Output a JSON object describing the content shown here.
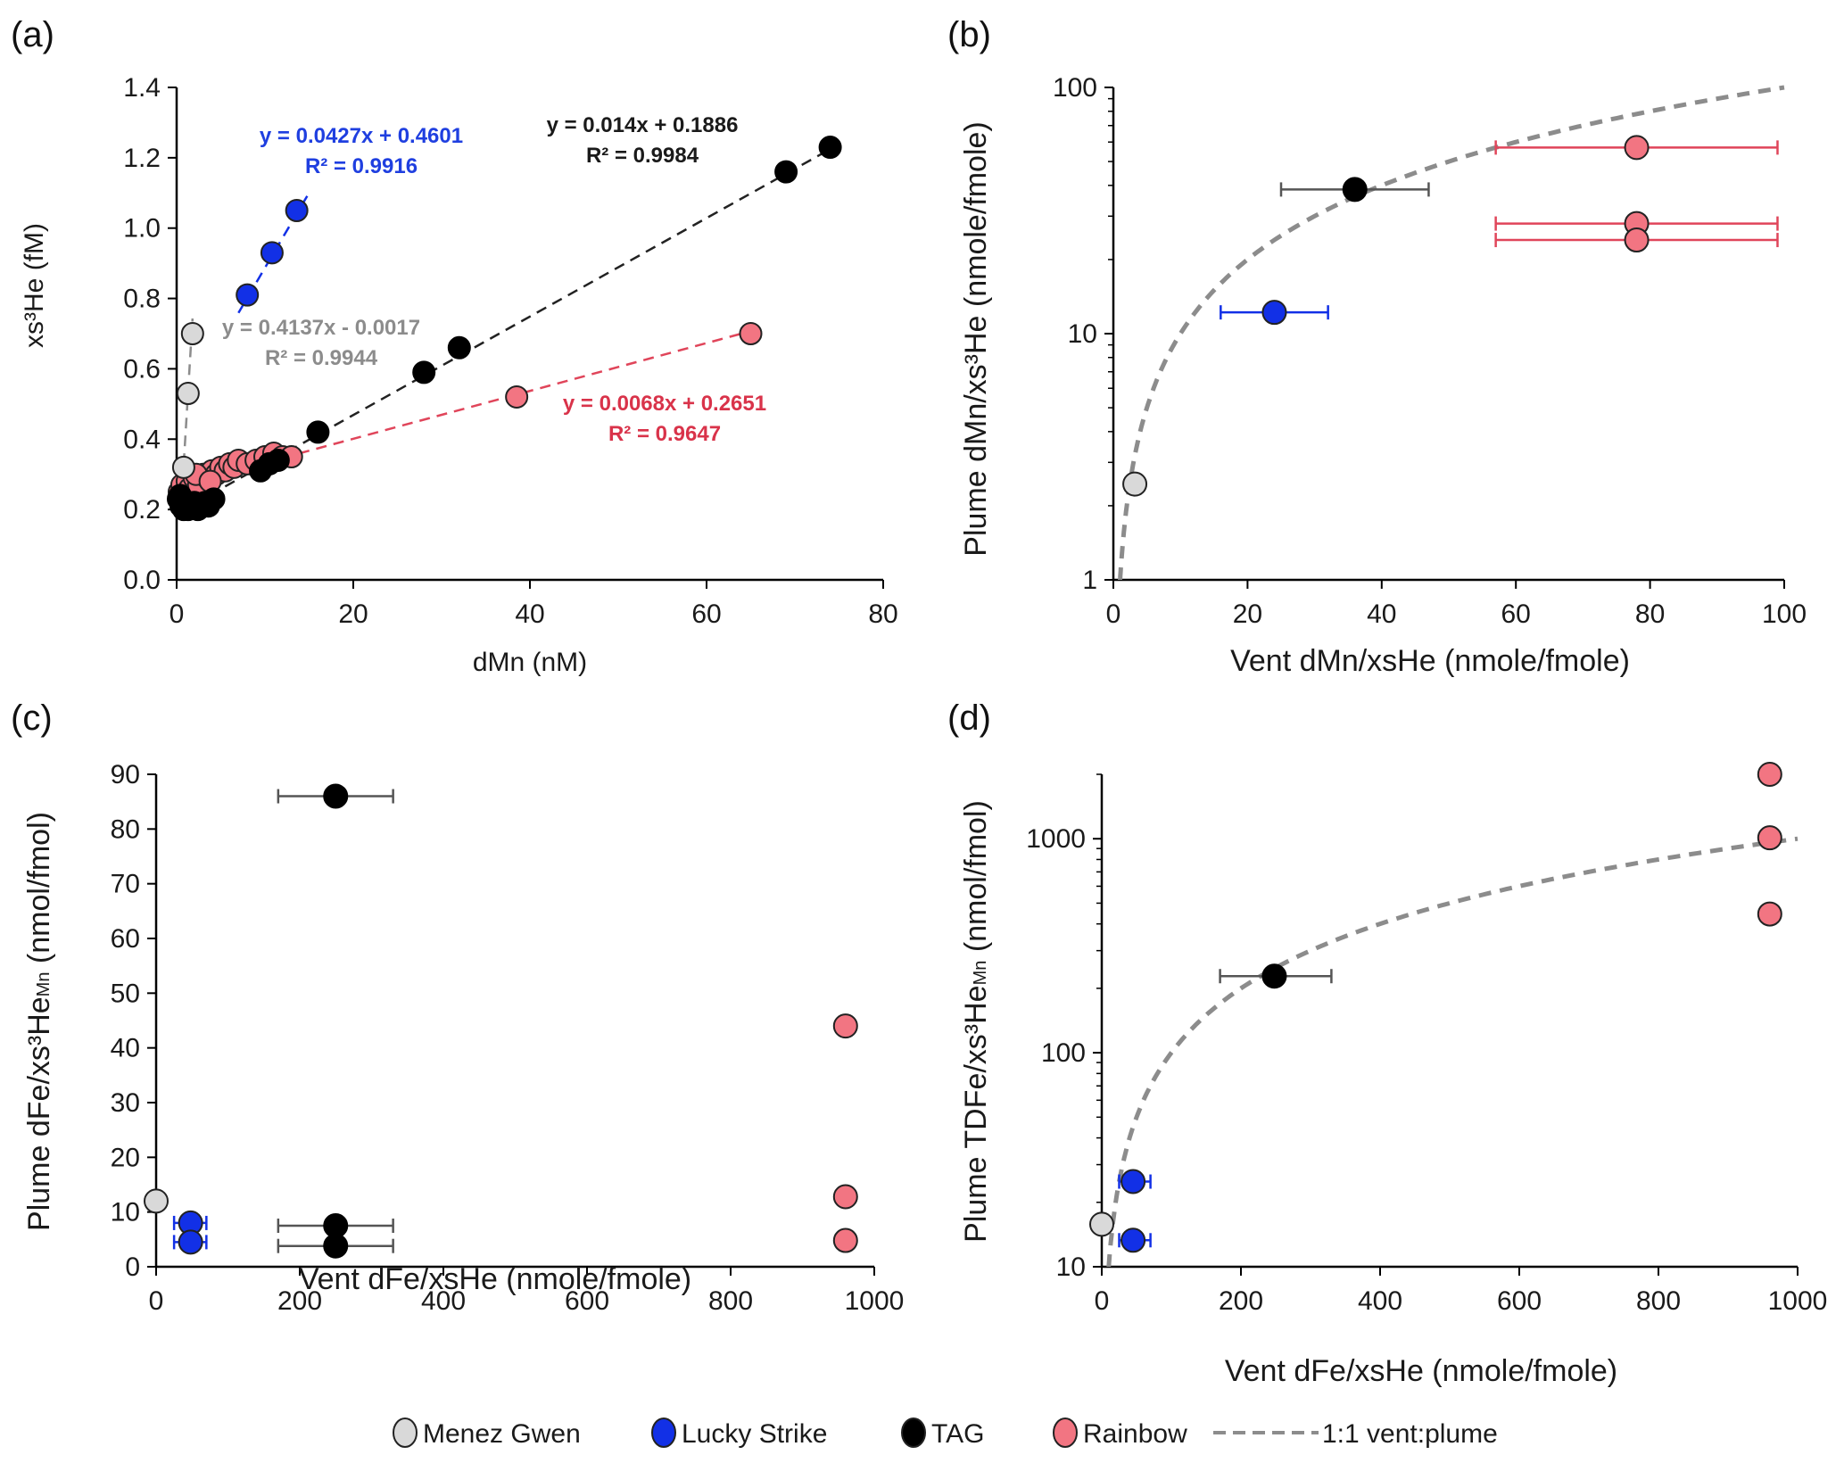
{
  "colors": {
    "menez_gwen": "#d9d9d9",
    "lucky_strike": "#1230e6",
    "tag": "#000000",
    "rainbow": "#f27582",
    "rainbow_line": "#e0455a",
    "one_to_one": "#8c8c8c",
    "eq_gray": "#8c8c8c",
    "eq_blue": "#1f3fe0",
    "eq_black": "#1a1a1a",
    "eq_red": "#d9334a"
  },
  "legend": {
    "items": [
      {
        "key": "menez_gwen",
        "label": "Menez Gwen",
        "type": "marker"
      },
      {
        "key": "lucky_strike",
        "label": "Lucky Strike",
        "type": "marker"
      },
      {
        "key": "tag",
        "label": "TAG",
        "type": "marker"
      },
      {
        "key": "rainbow",
        "label": "Rainbow",
        "type": "marker"
      },
      {
        "key": "one_to_one",
        "label": "1:1 vent:plume",
        "type": "dashed-line"
      }
    ],
    "placement": "bottom-center"
  },
  "chart_data": [
    {
      "panel": "(a)",
      "type": "scatter",
      "xlabel": "dMn (nM)",
      "ylabel": "xs³He (fM)",
      "xlim": [
        0,
        80
      ],
      "ylim": [
        0,
        1.4
      ],
      "xticks": [
        "0",
        "20",
        "40",
        "60",
        "80"
      ],
      "yticks": [
        "0.0",
        "0.2",
        "0.4",
        "0.6",
        "0.8",
        "1.0",
        "1.2",
        "1.4"
      ],
      "yscale": "linear",
      "series": [
        {
          "name": "Rainbow",
          "key": "rainbow",
          "points": [
            [
              0.3,
              0.25
            ],
            [
              0.6,
              0.27
            ],
            [
              0.9,
              0.24
            ],
            [
              1.2,
              0.28
            ],
            [
              1.5,
              0.26
            ],
            [
              2.0,
              0.29
            ],
            [
              2.5,
              0.27
            ],
            [
              3.0,
              0.3
            ],
            [
              3.5,
              0.29
            ],
            [
              4.0,
              0.31
            ],
            [
              4.5,
              0.3
            ],
            [
              5.0,
              0.32
            ],
            [
              5.5,
              0.31
            ],
            [
              6.0,
              0.33
            ],
            [
              6.5,
              0.32
            ],
            [
              7.0,
              0.34
            ],
            [
              8.0,
              0.33
            ],
            [
              9.0,
              0.34
            ],
            [
              10.0,
              0.35
            ],
            [
              11.0,
              0.36
            ],
            [
              12.0,
              0.35
            ],
            [
              13.0,
              0.35
            ],
            [
              2.2,
              0.3
            ],
            [
              3.8,
              0.28
            ],
            [
              38.5,
              0.52
            ],
            [
              65.0,
              0.7
            ]
          ]
        },
        {
          "name": "TAG",
          "key": "tag",
          "points": [
            [
              0.2,
              0.23
            ],
            [
              0.5,
              0.21
            ],
            [
              0.8,
              0.2
            ],
            [
              1.0,
              0.22
            ],
            [
              1.3,
              0.2
            ],
            [
              1.6,
              0.21
            ],
            [
              2.0,
              0.22
            ],
            [
              2.4,
              0.2
            ],
            [
              2.8,
              0.21
            ],
            [
              3.2,
              0.22
            ],
            [
              3.6,
              0.21
            ],
            [
              4.2,
              0.23
            ],
            [
              0.4,
              0.24
            ],
            [
              9.5,
              0.31
            ],
            [
              10.5,
              0.33
            ],
            [
              11.5,
              0.34
            ],
            [
              16.0,
              0.42
            ],
            [
              28.0,
              0.59
            ],
            [
              32.0,
              0.66
            ],
            [
              69.0,
              1.16
            ],
            [
              74.0,
              1.23
            ]
          ]
        },
        {
          "name": "Menez Gwen",
          "key": "menez_gwen",
          "points": [
            [
              0.8,
              0.32
            ],
            [
              1.3,
              0.53
            ],
            [
              1.8,
              0.7
            ]
          ]
        },
        {
          "name": "Lucky Strike",
          "key": "lucky_strike",
          "points": [
            [
              8.0,
              0.81
            ],
            [
              10.8,
              0.93
            ],
            [
              13.6,
              1.05
            ]
          ]
        }
      ],
      "trendlines": [
        {
          "key": "menez_gwen",
          "slope": 0.4137,
          "intercept": -0.0017,
          "x_range": [
            0.8,
            1.8
          ],
          "equation": "y = 0.4137x - 0.0017",
          "r2": "R² = 0.9944"
        },
        {
          "key": "lucky_strike",
          "slope": 0.0427,
          "intercept": 0.4601,
          "x_range": [
            7.0,
            15.0
          ],
          "equation": "y = 0.0427x + 0.4601",
          "r2": "R² = 0.9916"
        },
        {
          "key": "tag",
          "slope": 0.014,
          "intercept": 0.1886,
          "x_range": [
            0.2,
            74.0
          ],
          "equation": "y = 0.014x + 0.1886",
          "r2": "R² = 0.9984"
        },
        {
          "key": "rainbow",
          "slope": 0.0068,
          "intercept": 0.2651,
          "x_range": [
            0.2,
            65.0
          ],
          "equation": "y = 0.0068x + 0.2651",
          "r2": "R² = 0.9647"
        }
      ]
    },
    {
      "panel": "(b)",
      "type": "scatter",
      "xlabel": "Vent dMn/xsHe (nmole/fmole)",
      "ylabel": "Plume dMn/xs³He (nmole/fmole)",
      "xlim": [
        0,
        100
      ],
      "ylim": [
        1,
        100
      ],
      "yscale": "log",
      "xticks": [
        "0",
        "20",
        "40",
        "60",
        "80",
        "100"
      ],
      "yticks": [
        "1",
        "10",
        "100"
      ],
      "one_to_one": true,
      "series": [
        {
          "name": "Menez Gwen",
          "key": "menez_gwen",
          "points": [
            [
              3.2,
              2.45,
              null,
              null
            ]
          ]
        },
        {
          "name": "Lucky Strike",
          "key": "lucky_strike",
          "points": [
            [
              24.0,
              12.2,
              16.0,
              32.0
            ]
          ]
        },
        {
          "name": "TAG",
          "key": "tag",
          "points": [
            [
              36.0,
              38.5,
              25.0,
              47.0
            ]
          ]
        },
        {
          "name": "Rainbow",
          "key": "rainbow",
          "points": [
            [
              78.0,
              57.0,
              57.0,
              99.0
            ],
            [
              78.0,
              28.0,
              57.0,
              99.0
            ],
            [
              78.0,
              24.0,
              57.0,
              99.0
            ]
          ]
        }
      ]
    },
    {
      "panel": "(c)",
      "type": "scatter",
      "xlabel": "Vent dFe/xsHe (nmole/fmole)",
      "ylabel": "Plume dFe/xs³He",
      "ylabel_sub": "Mn",
      "ylabel_unit": " (nmol/fmol)",
      "xlim": [
        0,
        1000
      ],
      "ylim": [
        0,
        90
      ],
      "yscale": "linear",
      "xticks": [
        "0",
        "200",
        "400",
        "600",
        "800",
        "1000"
      ],
      "yticks": [
        "0",
        "10",
        "20",
        "30",
        "40",
        "50",
        "60",
        "70",
        "80",
        "90"
      ],
      "series": [
        {
          "name": "Menez Gwen",
          "key": "menez_gwen",
          "points": [
            [
              0,
              12.0,
              null,
              null
            ]
          ]
        },
        {
          "name": "Lucky Strike",
          "key": "lucky_strike",
          "points": [
            [
              48,
              8.0,
              25,
              70
            ],
            [
              48,
              4.5,
              25,
              70
            ]
          ]
        },
        {
          "name": "TAG",
          "key": "tag",
          "points": [
            [
              250,
              86.0,
              170,
              330
            ],
            [
              250,
              7.5,
              170,
              330
            ],
            [
              250,
              3.8,
              170,
              330
            ]
          ]
        },
        {
          "name": "Rainbow",
          "key": "rainbow",
          "points": [
            [
              960,
              44.0,
              null,
              null
            ],
            [
              960,
              12.8,
              null,
              null
            ],
            [
              960,
              4.8,
              null,
              null
            ]
          ]
        }
      ]
    },
    {
      "panel": "(d)",
      "type": "scatter",
      "xlabel": "Vent dFe/xsHe (nmole/fmole)",
      "ylabel": "Plume TDFe/xs³He",
      "ylabel_sub": "Mn",
      "ylabel_unit": " (nmol/fmol)",
      "xlim": [
        0,
        1000
      ],
      "ylim": [
        10,
        2000
      ],
      "yscale": "log",
      "xticks": [
        "0",
        "200",
        "400",
        "600",
        "800",
        "1000"
      ],
      "yticks": [
        "10",
        "100",
        "1000"
      ],
      "one_to_one": true,
      "series": [
        {
          "name": "Menez Gwen",
          "key": "menez_gwen",
          "points": [
            [
              0,
              15.8,
              null,
              null
            ]
          ]
        },
        {
          "name": "Lucky Strike",
          "key": "lucky_strike",
          "points": [
            [
              45,
              25.0,
              25,
              70
            ],
            [
              45,
              13.3,
              25,
              70
            ]
          ]
        },
        {
          "name": "TAG",
          "key": "tag",
          "points": [
            [
              248,
              228,
              170,
              330
            ]
          ]
        },
        {
          "name": "Rainbow",
          "key": "rainbow",
          "points": [
            [
              960,
              2000,
              null,
              null
            ],
            [
              960,
              1010,
              null,
              null
            ],
            [
              960,
              445,
              null,
              null
            ]
          ]
        }
      ]
    }
  ]
}
